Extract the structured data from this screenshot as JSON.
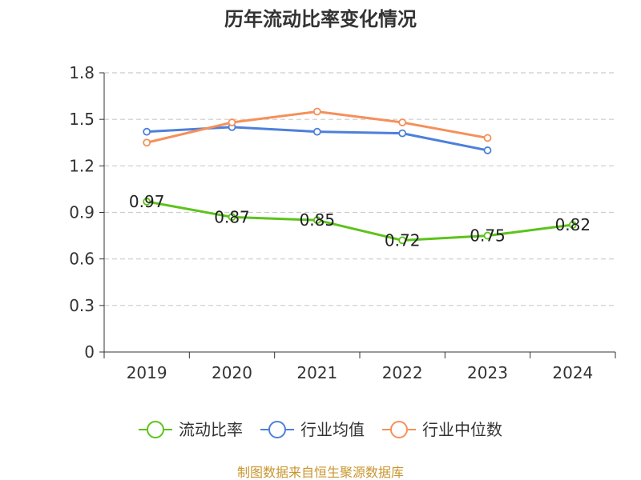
{
  "chart_data": {
    "type": "line",
    "title": "历年流动比率变化情况",
    "categories": [
      "2019",
      "2020",
      "2021",
      "2022",
      "2023",
      "2024"
    ],
    "ylim": [
      0,
      1.8
    ],
    "yticks": [
      "0",
      "0.3",
      "0.6",
      "0.9",
      "1.2",
      "1.5",
      "1.8"
    ],
    "grid": true,
    "legend_position": "bottom",
    "series": [
      {
        "name": "流动比率",
        "color": "#5cc31b",
        "values": [
          0.97,
          0.87,
          0.85,
          0.72,
          0.75,
          0.82
        ],
        "labels": [
          "0.97",
          "0.87",
          "0.85",
          "0.72",
          "0.75",
          "0.82"
        ],
        "show_labels": true
      },
      {
        "name": "行业均值",
        "color": "#4e7fdb",
        "values": [
          1.42,
          1.45,
          1.42,
          1.41,
          1.3,
          null
        ],
        "show_labels": false
      },
      {
        "name": "行业中位数",
        "color": "#f5905a",
        "values": [
          1.35,
          1.48,
          1.55,
          1.48,
          1.38,
          null
        ],
        "show_labels": false
      }
    ],
    "source": "制图数据来自恒生聚源数据库",
    "source_color": "#c8962f"
  }
}
